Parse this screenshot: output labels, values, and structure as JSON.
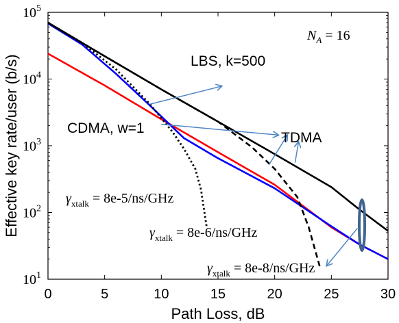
{
  "chart_data": {
    "type": "line",
    "xlabel": "Path Loss, dB",
    "ylabel": "Effective key rate/user (b/s)",
    "xlim": [
      0,
      30
    ],
    "ylim": [
      10,
      100000
    ],
    "yscale": "log",
    "grid": false,
    "legend": "none",
    "x_ticks": [
      0,
      5,
      10,
      15,
      20,
      25,
      30
    ],
    "y_ticks": [
      {
        "value": 10,
        "base": "10",
        "exp": "1"
      },
      {
        "value": 100,
        "base": "10",
        "exp": "2"
      },
      {
        "value": 1000,
        "base": "10",
        "exp": "3"
      },
      {
        "value": 10000,
        "base": "10",
        "exp": "4"
      },
      {
        "value": 100000,
        "base": "10",
        "exp": "5"
      }
    ],
    "series": [
      {
        "color": "#ff0000",
        "style": "solid",
        "x": [
          0,
          5,
          10,
          15,
          20,
          25,
          27.5,
          30
        ],
        "y": [
          24000,
          8000,
          2500,
          800,
          260,
          60,
          33,
          20
        ]
      },
      {
        "color": "#0000ff",
        "style": "solid",
        "x": [
          0,
          3,
          6,
          9,
          12,
          15,
          20,
          25,
          27.5,
          30
        ],
        "y": [
          68000,
          33000,
          12000,
          4000,
          1300,
          650,
          230,
          62,
          33,
          20
        ]
      },
      {
        "color": "#000000",
        "style": "solid",
        "x": [
          0,
          5,
          10,
          15,
          20,
          25,
          27.5,
          30
        ],
        "y": [
          70000,
          22000,
          7000,
          2300,
          750,
          240,
          110,
          53
        ]
      },
      {
        "color": "#000000",
        "style": "dashed",
        "x": [
          0,
          5,
          10,
          15,
          18,
          20,
          22,
          23,
          24
        ],
        "y": [
          70000,
          22000,
          7000,
          2300,
          950,
          450,
          170,
          60,
          15
        ]
      },
      {
        "color": "#000000",
        "style": "dotted",
        "x": [
          0,
          3,
          6,
          9,
          11,
          12,
          13,
          13.5,
          14
        ],
        "y": [
          70000,
          35000,
          14000,
          4200,
          1600,
          900,
          450,
          220,
          60
        ]
      }
    ],
    "annotations": {
      "na_label": {
        "text": "16"
      },
      "lbs": {
        "text": "LBS, k=500"
      },
      "cdma": {
        "text": "CDMA, w=1"
      },
      "tdma": {
        "text": "TDMA"
      },
      "xtalk1": {
        "value": "8e-5/ns/GHz"
      },
      "xtalk2": {
        "value": "8e-6/ns/GHz"
      },
      "xtalk3": {
        "value": "8e-8/ns/GHz"
      }
    },
    "arrow_color": "#4f86c6",
    "ellipse_color": "#41648f"
  }
}
